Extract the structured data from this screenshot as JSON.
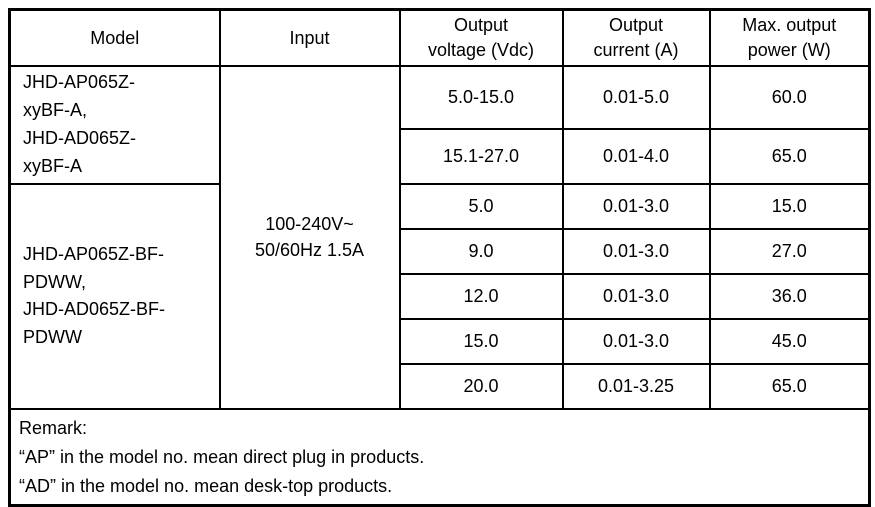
{
  "table": {
    "headers": {
      "model": "Model",
      "input": "Input",
      "voltage": "Output\nvoltage (Vdc)",
      "current": "Output\ncurrent (A)",
      "power": "Max. output\npower (W)"
    },
    "model_groups": [
      {
        "name": "JHD-AP065Z-\nxyBF-A,\nJHD-AD065Z-\nxyBF-A"
      },
      {
        "name": "JHD-AP065Z-BF-\nPDWW,\nJHD-AD065Z-BF-\nPDWW"
      }
    ],
    "input_value": "100-240V~\n50/60Hz 1.5A",
    "rows": [
      {
        "voltage": "5.0-15.0",
        "current": "0.01-5.0",
        "power": "60.0"
      },
      {
        "voltage": "15.1-27.0",
        "current": "0.01-4.0",
        "power": "65.0"
      },
      {
        "voltage": "5.0",
        "current": "0.01-3.0",
        "power": "15.0"
      },
      {
        "voltage": "9.0",
        "current": "0.01-3.0",
        "power": "27.0"
      },
      {
        "voltage": "12.0",
        "current": "0.01-3.0",
        "power": "36.0"
      },
      {
        "voltage": "15.0",
        "current": "0.01-3.0",
        "power": "45.0"
      },
      {
        "voltage": "20.0",
        "current": "0.01-3.25",
        "power": "65.0"
      }
    ],
    "remark": "Remark:\n“AP” in the model no. mean direct plug in products.\n“AD” in the model no. mean desk-top products."
  }
}
